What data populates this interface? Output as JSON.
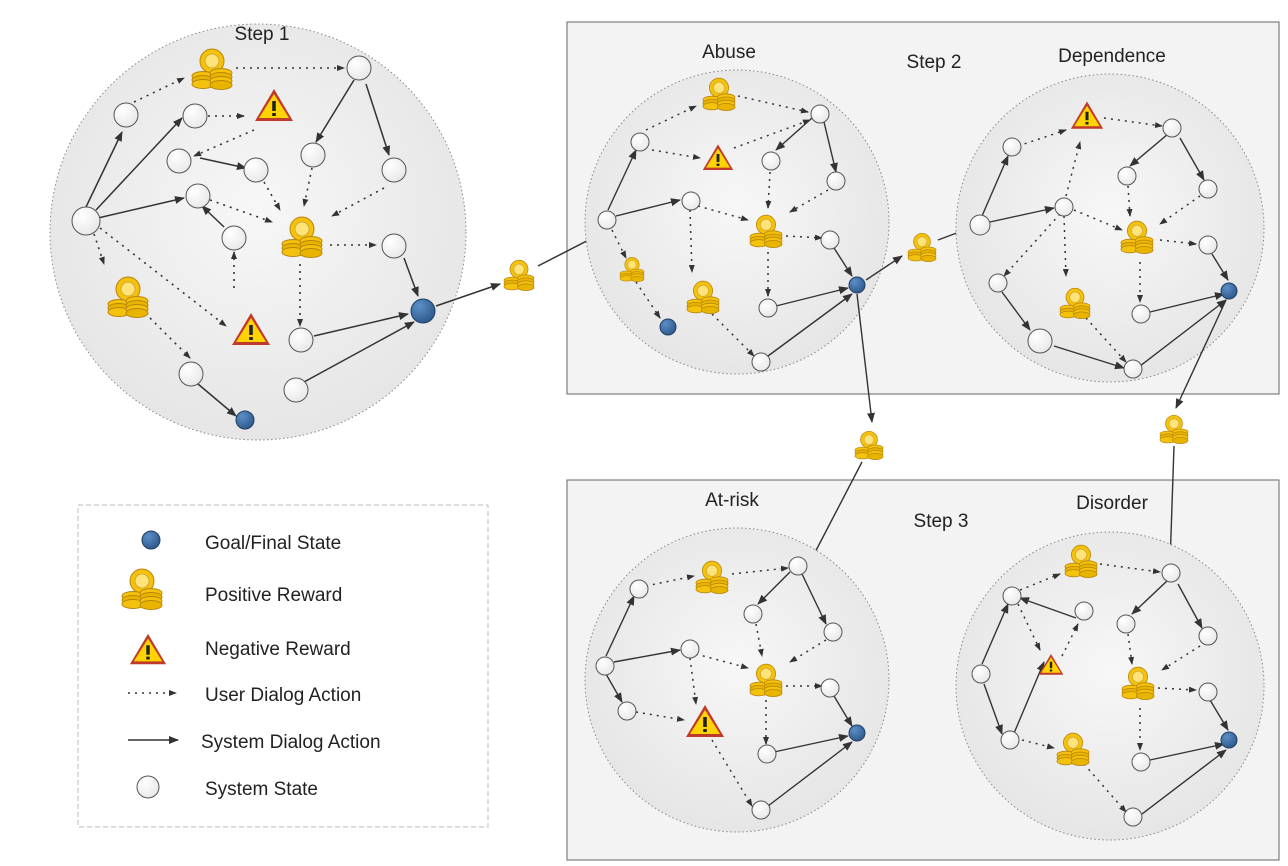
{
  "step1": {
    "title": "Step 1"
  },
  "step2": {
    "title": "Step 2",
    "left_label": "Abuse",
    "right_label": "Dependence"
  },
  "step3": {
    "title": "Step 3",
    "left_label": "At-risk",
    "right_label": "Disorder"
  },
  "legend": {
    "goal": "Goal/Final State",
    "positive": "Positive Reward",
    "negative": "Negative Reward",
    "user_action": "User Dialog Action",
    "system_action": "System Dialog Action",
    "system_state": "System State"
  },
  "icons": {
    "goal_state": "goal-state-icon",
    "positive_reward": "coins-icon",
    "negative_reward": "warning-icon",
    "system_state": "state-circle-icon"
  },
  "colors": {
    "goal": "#3a6ea5",
    "coin": "#f2c200",
    "warning": "#ffd400",
    "warning_border": "#c0392b",
    "panel_bg": "#f3f3f3",
    "cluster_bg": "#eeeeee"
  }
}
